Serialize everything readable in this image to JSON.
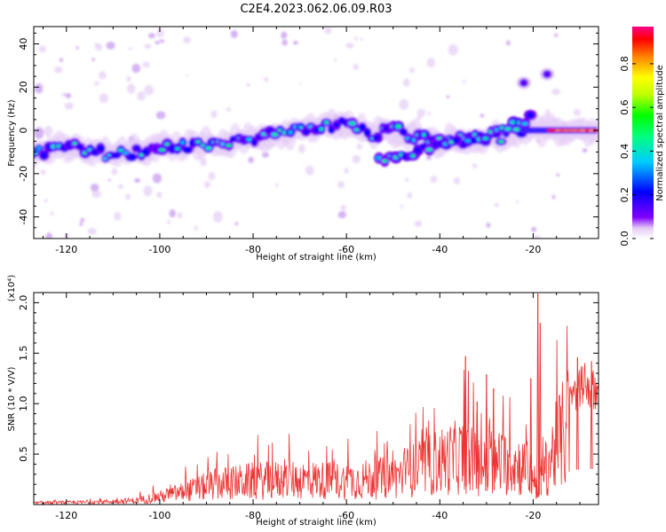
{
  "title": "C2E4.2023.062.06.09.R03",
  "chart_data": [
    {
      "type": "heatmap",
      "xlabel": "Height of straight line (km)",
      "ylabel": "Frequency (Hz)",
      "xlim": [
        -127,
        -6
      ],
      "ylim": [
        -50,
        48
      ],
      "xticks": [
        -120,
        -100,
        -80,
        -60,
        -40,
        -20
      ],
      "yticks": [
        -40,
        -20,
        0,
        20,
        40
      ],
      "colorbar": {
        "label": "Normalized spectral amplitude",
        "range": [
          0.0,
          0.97
        ],
        "ticks": [
          "0.0",
          "0.2",
          "0.4",
          "0.6",
          "0.8"
        ],
        "colormap": "rainbow"
      },
      "ridge_frequency_hz": [
        [
          -126,
          -10
        ],
        [
          -120,
          -8
        ],
        [
          -110,
          -11
        ],
        [
          -100,
          -8
        ],
        [
          -90,
          -6
        ],
        [
          -80,
          -4
        ],
        [
          -70,
          0
        ],
        [
          -60,
          3
        ],
        [
          -55,
          -2
        ],
        [
          -50,
          0
        ],
        [
          -40,
          -5
        ],
        [
          -30,
          -4
        ],
        [
          -20,
          0
        ],
        [
          -15,
          0
        ],
        [
          -6,
          0
        ]
      ],
      "secondary_branch_hz": [
        [
          -53,
          -14
        ],
        [
          -45,
          -10
        ],
        [
          -35,
          -6
        ],
        [
          -25,
          2
        ],
        [
          -20,
          6
        ]
      ],
      "isolated_features_hz": [
        [
          -22,
          22
        ],
        [
          -17,
          26
        ]
      ]
    },
    {
      "type": "line",
      "xlabel": "Height of straight line (km)",
      "ylabel": "SNR (10 * V/V)",
      "y_multiplier": "(x10⁴)",
      "xlim": [
        -127,
        -6
      ],
      "ylim": [
        0,
        2.1
      ],
      "xticks": [
        -120,
        -100,
        -80,
        -60,
        -40,
        -20
      ],
      "yticks": [
        "0.5",
        "1.0",
        "1.5",
        "2.0"
      ],
      "series_color": "#ee3333",
      "envelope": [
        [
          -127,
          0.02
        ],
        [
          -115,
          0.03
        ],
        [
          -105,
          0.05
        ],
        [
          -100,
          0.1
        ],
        [
          -95,
          0.16
        ],
        [
          -88,
          0.26
        ],
        [
          -80,
          0.3
        ],
        [
          -70,
          0.32
        ],
        [
          -60,
          0.3
        ],
        [
          -50,
          0.35
        ],
        [
          -45,
          0.45
        ],
        [
          -40,
          0.55
        ],
        [
          -35,
          0.62
        ],
        [
          -30,
          0.45
        ],
        [
          -25,
          0.55
        ],
        [
          -21,
          0.45
        ],
        [
          -19,
          0.25
        ],
        [
          -15,
          0.75
        ],
        [
          -12,
          1.05
        ],
        [
          -9,
          1.25
        ],
        [
          -6,
          1.1
        ]
      ],
      "peaks": [
        [
          -34.5,
          1.47
        ],
        [
          -32,
          1.02
        ],
        [
          -30,
          1.29
        ],
        [
          -28.5,
          1.15
        ],
        [
          -20.5,
          1.25
        ],
        [
          -19,
          2.09
        ],
        [
          -18.5,
          1.8
        ],
        [
          -10.5,
          1.46
        ],
        [
          -7.5,
          1.42
        ]
      ]
    }
  ]
}
